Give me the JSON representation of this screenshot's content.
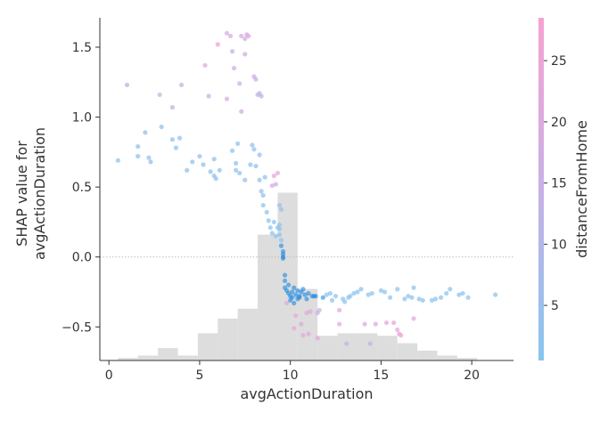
{
  "chart_data": {
    "type": "scatter",
    "xlabel": "avgActionDuration",
    "ylabel_lines": [
      "SHAP value for",
      "avgActionDuration"
    ],
    "colorbar_label": "distanceFromHome",
    "xlim": [
      -0.5,
      22.3
    ],
    "ylim": [
      -0.74,
      1.71
    ],
    "x_ticks": [
      0,
      5,
      10,
      15,
      20
    ],
    "y_ticks": [
      -0.5,
      0.0,
      0.5,
      1.0,
      1.5
    ],
    "x_tick_labels": [
      "0",
      "5",
      "10",
      "15",
      "20"
    ],
    "y_tick_labels": [
      "−0.5",
      "0.0",
      "0.5",
      "1.0",
      "1.5"
    ],
    "colorbar_range": [
      0.5,
      28.5
    ],
    "colorbar_ticks": [
      5,
      10,
      15,
      20,
      25
    ],
    "colorbar_tick_labels": [
      "5",
      "10",
      "15",
      "20",
      "25"
    ],
    "zero_line": true,
    "histogram": {
      "bin_width": 1.1,
      "start": 0.5,
      "heights": [
        0.01,
        0.02,
        0.05,
        0.02,
        0.11,
        0.17,
        0.21,
        0.51,
        0.68,
        0.29,
        0.1,
        0.11,
        0.11,
        0.1,
        0.07,
        0.04,
        0.02,
        0.01
      ]
    },
    "points": [
      [
        0.5,
        0.69,
        2
      ],
      [
        1.0,
        1.23,
        11
      ],
      [
        1.6,
        0.79,
        3
      ],
      [
        1.6,
        0.72,
        3
      ],
      [
        2.2,
        0.71,
        3
      ],
      [
        2.3,
        0.68,
        3
      ],
      [
        2.0,
        0.89,
        3
      ],
      [
        2.8,
        1.16,
        18
      ],
      [
        2.9,
        0.93,
        3
      ],
      [
        3.5,
        0.84,
        3
      ],
      [
        3.5,
        1.07,
        11
      ],
      [
        3.7,
        0.78,
        3
      ],
      [
        3.9,
        0.85,
        3
      ],
      [
        4.0,
        1.23,
        12
      ],
      [
        4.3,
        0.62,
        3
      ],
      [
        4.6,
        0.68,
        3
      ],
      [
        5.0,
        0.72,
        3
      ],
      [
        5.2,
        0.66,
        3
      ],
      [
        5.3,
        1.37,
        22
      ],
      [
        5.5,
        1.15,
        12
      ],
      [
        5.6,
        0.61,
        3
      ],
      [
        5.8,
        0.7,
        3
      ],
      [
        5.8,
        0.58,
        3
      ],
      [
        5.9,
        0.56,
        3
      ],
      [
        6.0,
        1.52,
        25
      ],
      [
        6.1,
        0.62,
        3
      ],
      [
        6.5,
        1.6,
        18
      ],
      [
        6.7,
        1.58,
        20
      ],
      [
        6.5,
        1.13,
        21
      ],
      [
        6.8,
        0.76,
        3
      ],
      [
        6.8,
        1.47,
        15
      ],
      [
        6.9,
        1.35,
        17
      ],
      [
        7.0,
        0.67,
        3
      ],
      [
        7.0,
        0.62,
        3
      ],
      [
        7.1,
        0.81,
        3
      ],
      [
        7.2,
        0.6,
        3
      ],
      [
        7.2,
        1.24,
        18
      ],
      [
        7.3,
        1.58,
        20
      ],
      [
        7.3,
        1.04,
        18
      ],
      [
        7.5,
        1.56,
        16
      ],
      [
        7.5,
        1.45,
        18
      ],
      [
        7.5,
        0.55,
        3
      ],
      [
        7.6,
        1.59,
        14
      ],
      [
        7.7,
        1.58,
        25
      ],
      [
        7.8,
        0.66,
        3
      ],
      [
        7.9,
        0.8,
        3
      ],
      [
        8.0,
        1.29,
        16
      ],
      [
        8.0,
        0.77,
        3
      ],
      [
        8.1,
        1.27,
        13
      ],
      [
        8.1,
        0.65,
        3
      ],
      [
        8.2,
        1.16,
        18
      ],
      [
        8.3,
        1.17,
        13
      ],
      [
        8.3,
        0.73,
        3
      ],
      [
        8.3,
        0.55,
        3
      ],
      [
        8.4,
        1.15,
        11
      ],
      [
        8.4,
        0.47,
        2
      ],
      [
        8.5,
        0.44,
        2
      ],
      [
        8.5,
        0.37,
        2
      ],
      [
        8.6,
        0.57,
        2
      ],
      [
        8.7,
        0.32,
        2
      ],
      [
        8.8,
        0.26,
        2
      ],
      [
        8.9,
        0.21,
        2
      ],
      [
        9.0,
        0.17,
        2
      ],
      [
        9.0,
        0.51,
        20
      ],
      [
        9.1,
        0.58,
        23
      ],
      [
        9.1,
        0.25,
        2
      ],
      [
        9.2,
        0.15,
        2
      ],
      [
        9.2,
        0.52,
        16
      ],
      [
        9.3,
        0.6,
        22
      ],
      [
        9.3,
        0.21,
        2
      ],
      [
        9.4,
        0.16,
        2
      ],
      [
        9.4,
        0.37,
        5
      ],
      [
        9.5,
        0.34,
        5
      ],
      [
        9.4,
        0.23,
        2
      ],
      [
        9.4,
        0.2,
        2
      ],
      [
        9.5,
        0.12,
        2
      ],
      [
        9.5,
        0.08,
        2
      ],
      [
        9.6,
        0.04,
        2
      ],
      [
        9.6,
        0.02,
        2
      ],
      [
        9.6,
        0.0,
        2
      ],
      [
        9.6,
        -0.01,
        2
      ],
      [
        9.7,
        -0.13,
        2
      ],
      [
        9.7,
        -0.17,
        2
      ],
      [
        9.7,
        -0.22,
        2
      ],
      [
        9.8,
        -0.24,
        2
      ],
      [
        9.8,
        -0.33,
        20
      ],
      [
        9.9,
        -0.2,
        2
      ],
      [
        9.9,
        -0.26,
        2
      ],
      [
        10.0,
        -0.28,
        2
      ],
      [
        10.0,
        -0.31,
        2
      ],
      [
        10.1,
        -0.25,
        2
      ],
      [
        10.1,
        -0.29,
        2
      ],
      [
        10.2,
        -0.22,
        2
      ],
      [
        10.2,
        -0.33,
        2
      ],
      [
        10.2,
        -0.51,
        24
      ],
      [
        10.3,
        -0.42,
        24
      ],
      [
        10.3,
        -0.27,
        2
      ],
      [
        10.4,
        -0.3,
        2
      ],
      [
        10.4,
        -0.24,
        2
      ],
      [
        10.5,
        -0.28,
        2
      ],
      [
        10.5,
        -0.29,
        2
      ],
      [
        10.6,
        -0.25,
        2
      ],
      [
        10.6,
        -0.48,
        19
      ],
      [
        10.7,
        -0.23,
        2
      ],
      [
        10.7,
        -0.56,
        24
      ],
      [
        10.8,
        -0.27,
        2
      ],
      [
        10.9,
        -0.4,
        22
      ],
      [
        10.9,
        -0.3,
        2
      ],
      [
        11.0,
        -0.26,
        2
      ],
      [
        11.0,
        -0.55,
        24
      ],
      [
        11.1,
        -0.39,
        20
      ],
      [
        11.2,
        -0.28,
        2
      ],
      [
        11.3,
        -0.28,
        2
      ],
      [
        11.4,
        -0.28,
        2
      ],
      [
        11.5,
        -0.4,
        16
      ],
      [
        11.5,
        -0.58,
        24
      ],
      [
        11.6,
        -0.38,
        18
      ],
      [
        11.8,
        -0.29,
        2
      ],
      [
        12.0,
        -0.27,
        2
      ],
      [
        12.2,
        -0.26,
        2
      ],
      [
        12.3,
        -0.31,
        2
      ],
      [
        12.5,
        -0.28,
        2
      ],
      [
        12.7,
        -0.38,
        22
      ],
      [
        12.7,
        -0.48,
        24
      ],
      [
        12.9,
        -0.3,
        2
      ],
      [
        13.0,
        -0.32,
        2
      ],
      [
        13.1,
        -0.62,
        14
      ],
      [
        13.2,
        -0.29,
        2
      ],
      [
        13.3,
        -0.28,
        2
      ],
      [
        13.5,
        -0.26,
        2
      ],
      [
        13.7,
        -0.25,
        2
      ],
      [
        13.9,
        -0.23,
        2
      ],
      [
        14.1,
        -0.48,
        22
      ],
      [
        14.3,
        -0.27,
        2
      ],
      [
        14.4,
        -0.62,
        14
      ],
      [
        14.5,
        -0.26,
        2
      ],
      [
        14.7,
        -0.48,
        22
      ],
      [
        15.0,
        -0.24,
        2
      ],
      [
        15.2,
        -0.25,
        2
      ],
      [
        15.3,
        -0.47,
        22
      ],
      [
        15.5,
        -0.29,
        2
      ],
      [
        15.7,
        -0.47,
        24
      ],
      [
        15.9,
        -0.23,
        2
      ],
      [
        15.9,
        -0.52,
        24
      ],
      [
        16.0,
        -0.55,
        24
      ],
      [
        16.1,
        -0.56,
        26
      ],
      [
        16.3,
        -0.3,
        2
      ],
      [
        16.5,
        -0.28,
        2
      ],
      [
        16.7,
        -0.29,
        2
      ],
      [
        16.8,
        -0.44,
        22
      ],
      [
        16.8,
        -0.22,
        2
      ],
      [
        17.1,
        -0.3,
        2
      ],
      [
        17.3,
        -0.31,
        2
      ],
      [
        17.8,
        -0.31,
        2
      ],
      [
        18.0,
        -0.3,
        2
      ],
      [
        18.3,
        -0.29,
        2
      ],
      [
        18.6,
        -0.26,
        2
      ],
      [
        18.8,
        -0.23,
        2
      ],
      [
        19.3,
        -0.27,
        2
      ],
      [
        19.5,
        -0.26,
        2
      ],
      [
        19.8,
        -0.29,
        2
      ],
      [
        21.3,
        -0.27,
        2
      ]
    ]
  },
  "colors": {
    "axis": "#333333",
    "histogram": "#dddddd",
    "zero_line": "#bbbbbb",
    "cmap_low": "#88c6ee",
    "cmap_mid": "#c7b1e6",
    "cmap_high": "#f7a2d2",
    "cluster": "#1e88e5"
  }
}
